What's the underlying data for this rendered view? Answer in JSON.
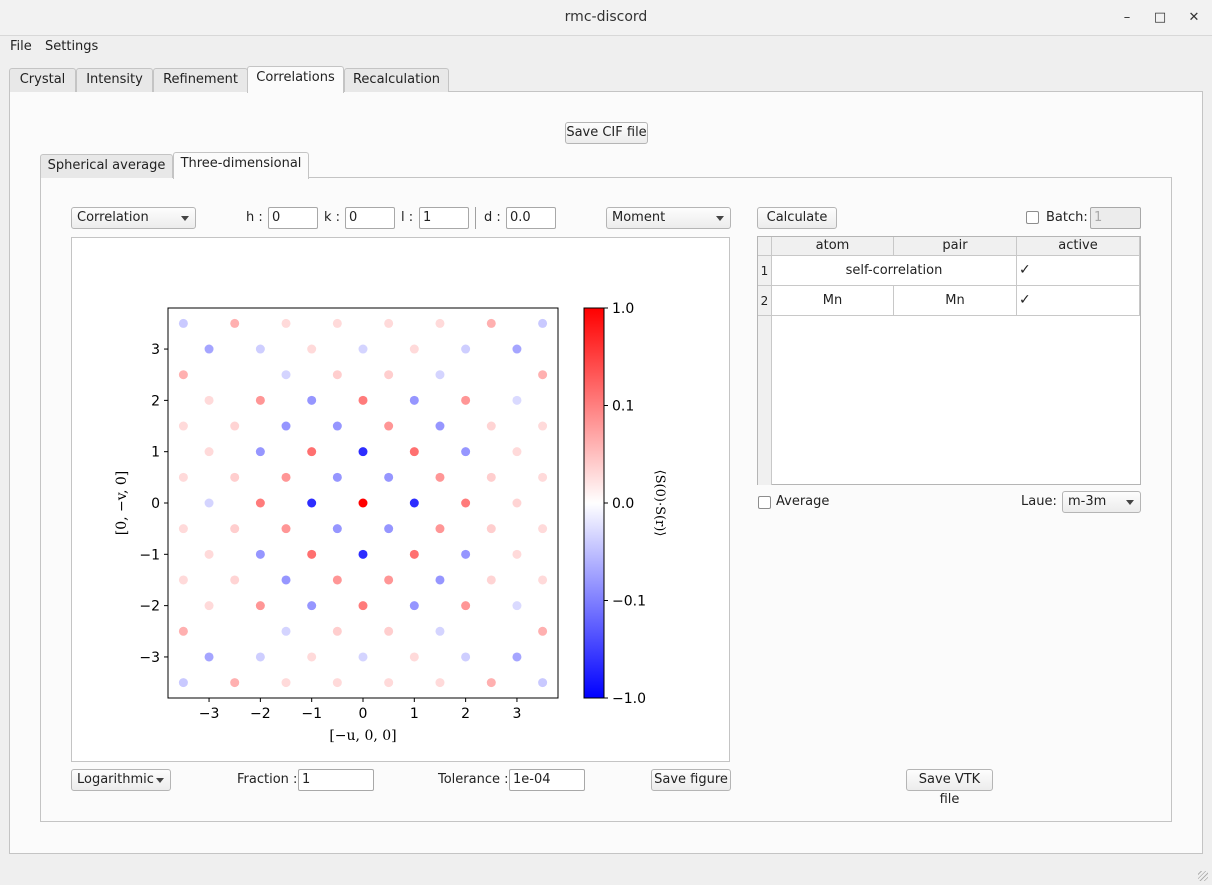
{
  "window": {
    "title": "rmc-discord",
    "minimize": "–",
    "maximize": "□",
    "close": "✕"
  },
  "menu": [
    "File",
    "Settings"
  ],
  "tabs": [
    "Crystal",
    "Intensity",
    "Refinement",
    "Correlations",
    "Recalculation"
  ],
  "save_cif": "Save CIF file",
  "subtabs": [
    "Spherical average",
    "Three-dimensional"
  ],
  "controls": {
    "correlation_combo": "Correlation",
    "h_label": "h :",
    "h_value": "0",
    "k_label": "k :",
    "k_value": "0",
    "l_label": "l :",
    "l_value": "1",
    "d_label": "d :",
    "d_value": "0.0",
    "moment_combo": "Moment",
    "calculate": "Calculate",
    "batch_label": "Batch:",
    "batch_value": "1",
    "scale_combo": "Logarithmic",
    "fraction_label": "Fraction :",
    "fraction_value": "1",
    "tolerance_label": "Tolerance :",
    "tolerance_value": "1e-04",
    "save_figure": "Save figure",
    "average_label": "Average",
    "laue_label": "Laue:",
    "laue_value": "m-3m",
    "save_vtk": "Save VTK file"
  },
  "table": {
    "headers": [
      "atom",
      "pair",
      "active"
    ],
    "rows": [
      {
        "num": "1",
        "atom": "self-correlation",
        "pair": "",
        "active": "✓"
      },
      {
        "num": "2",
        "atom": "Mn",
        "pair": "Mn",
        "active": "✓"
      }
    ]
  },
  "chart_data": {
    "type": "scatter",
    "xlabel": "[−u, 0, 0]",
    "ylabel": "[0, −v, 0]",
    "xlim": [
      -3.8,
      3.8
    ],
    "ylim": [
      -3.8,
      3.8
    ],
    "xticks": [
      "−3",
      "−2",
      "−1",
      "0",
      "1",
      "2",
      "3"
    ],
    "yticks": [
      "3",
      "2",
      "1",
      "0",
      "−1",
      "−2",
      "−3"
    ],
    "colorbar_label": "⟨S(0)·S(r)⟩",
    "colorbar_ticks": [
      "1.0",
      "0.1",
      "0.0",
      "−0.1",
      "−1.0"
    ],
    "colorbar_range": [
      -1.0,
      1.0
    ],
    "colormap": [
      "#0000ff",
      "#ffffff",
      "#ff0000"
    ],
    "points": [
      {
        "x": 0,
        "y": 0,
        "v": 1.0
      },
      {
        "x": 1,
        "y": 0,
        "v": -0.7
      },
      {
        "x": -1,
        "y": 0,
        "v": -0.7
      },
      {
        "x": 0,
        "y": 1,
        "v": -0.7
      },
      {
        "x": 0,
        "y": -1,
        "v": -0.7
      },
      {
        "x": 1,
        "y": 1,
        "v": 0.35
      },
      {
        "x": -1,
        "y": 1,
        "v": 0.35
      },
      {
        "x": 1,
        "y": -1,
        "v": 0.35
      },
      {
        "x": -1,
        "y": -1,
        "v": 0.35
      },
      {
        "x": 2,
        "y": 0,
        "v": 0.3
      },
      {
        "x": -2,
        "y": 0,
        "v": 0.3
      },
      {
        "x": 0,
        "y": 2,
        "v": 0.3
      },
      {
        "x": 0,
        "y": -2,
        "v": 0.3
      },
      {
        "x": 0.5,
        "y": 0.5,
        "v": -0.2
      },
      {
        "x": -0.5,
        "y": 0.5,
        "v": -0.2
      },
      {
        "x": 0.5,
        "y": -0.5,
        "v": -0.2
      },
      {
        "x": -0.5,
        "y": -0.5,
        "v": -0.2
      },
      {
        "x": 1.5,
        "y": 0.5,
        "v": 0.2
      },
      {
        "x": -1.5,
        "y": 0.5,
        "v": 0.2
      },
      {
        "x": 1.5,
        "y": -0.5,
        "v": 0.2
      },
      {
        "x": -1.5,
        "y": -0.5,
        "v": 0.2
      },
      {
        "x": 0.5,
        "y": 1.5,
        "v": 0.2
      },
      {
        "x": -0.5,
        "y": 1.5,
        "v": -0.2
      },
      {
        "x": 0.5,
        "y": -1.5,
        "v": 0.2
      },
      {
        "x": -0.5,
        "y": -1.5,
        "v": 0.2
      },
      {
        "x": 1.5,
        "y": 1.5,
        "v": -0.2
      },
      {
        "x": -1.5,
        "y": 1.5,
        "v": -0.2
      },
      {
        "x": 1.5,
        "y": -1.5,
        "v": -0.2
      },
      {
        "x": -1.5,
        "y": -1.5,
        "v": -0.2
      },
      {
        "x": 2,
        "y": 1,
        "v": -0.2
      },
      {
        "x": -2,
        "y": 1,
        "v": -0.2
      },
      {
        "x": 2,
        "y": -1,
        "v": -0.2
      },
      {
        "x": -2,
        "y": -1,
        "v": -0.2
      },
      {
        "x": 1,
        "y": 2,
        "v": -0.2
      },
      {
        "x": -1,
        "y": 2,
        "v": -0.2
      },
      {
        "x": 1,
        "y": -2,
        "v": -0.2
      },
      {
        "x": -1,
        "y": -2,
        "v": -0.2
      },
      {
        "x": 2,
        "y": 2,
        "v": 0.2
      },
      {
        "x": -2,
        "y": 2,
        "v": 0.2
      },
      {
        "x": 2,
        "y": -2,
        "v": 0.2
      },
      {
        "x": -2,
        "y": -2,
        "v": 0.2
      },
      {
        "x": 3,
        "y": 3,
        "v": -0.15
      },
      {
        "x": -3,
        "y": 3,
        "v": -0.15
      },
      {
        "x": 3,
        "y": -3,
        "v": -0.15
      },
      {
        "x": -3,
        "y": -3,
        "v": -0.15
      },
      {
        "x": 2.5,
        "y": 3.5,
        "v": 0.12
      },
      {
        "x": -2.5,
        "y": 3.5,
        "v": 0.12
      },
      {
        "x": 2.5,
        "y": -3.5,
        "v": 0.12
      },
      {
        "x": -2.5,
        "y": -3.5,
        "v": 0.12
      },
      {
        "x": 3.5,
        "y": 2.5,
        "v": 0.12
      },
      {
        "x": -3.5,
        "y": 2.5,
        "v": 0.12
      },
      {
        "x": 3.5,
        "y": -2.5,
        "v": 0.12
      },
      {
        "x": -3.5,
        "y": -2.5,
        "v": 0.12
      },
      {
        "x": 3,
        "y": 0,
        "v": 0.04
      },
      {
        "x": -3,
        "y": 0,
        "v": -0.04
      },
      {
        "x": 0,
        "y": 3,
        "v": -0.04
      },
      {
        "x": 0,
        "y": -3,
        "v": -0.04
      },
      {
        "x": 2.5,
        "y": 0.5,
        "v": 0.05
      },
      {
        "x": -2.5,
        "y": 0.5,
        "v": 0.05
      },
      {
        "x": 2.5,
        "y": -0.5,
        "v": 0.05
      },
      {
        "x": -2.5,
        "y": -0.5,
        "v": 0.05
      },
      {
        "x": 0.5,
        "y": 2.5,
        "v": 0.05
      },
      {
        "x": -0.5,
        "y": 2.5,
        "v": 0.05
      },
      {
        "x": 0.5,
        "y": -2.5,
        "v": 0.05
      },
      {
        "x": -0.5,
        "y": -2.5,
        "v": 0.05
      },
      {
        "x": 1.5,
        "y": 2.5,
        "v": -0.04
      },
      {
        "x": -1.5,
        "y": 2.5,
        "v": -0.04
      },
      {
        "x": 1.5,
        "y": -2.5,
        "v": -0.04
      },
      {
        "x": -1.5,
        "y": -2.5,
        "v": -0.04
      },
      {
        "x": 2.5,
        "y": 1.5,
        "v": 0.04
      },
      {
        "x": -2.5,
        "y": 1.5,
        "v": 0.04
      },
      {
        "x": 2.5,
        "y": -1.5,
        "v": 0.04
      },
      {
        "x": -2.5,
        "y": -1.5,
        "v": 0.04
      },
      {
        "x": 3,
        "y": 1,
        "v": 0.03
      },
      {
        "x": -3,
        "y": 1,
        "v": 0.03
      },
      {
        "x": 3,
        "y": -1,
        "v": 0.03
      },
      {
        "x": -3,
        "y": -1,
        "v": 0.03
      },
      {
        "x": 1,
        "y": 3,
        "v": 0.03
      },
      {
        "x": -1,
        "y": 3,
        "v": 0.03
      },
      {
        "x": 1,
        "y": -3,
        "v": 0.03
      },
      {
        "x": -1,
        "y": -3,
        "v": 0.03
      },
      {
        "x": 3,
        "y": 2,
        "v": -0.03
      },
      {
        "x": -3,
        "y": 2,
        "v": 0.03
      },
      {
        "x": 3,
        "y": -2,
        "v": -0.03
      },
      {
        "x": -3,
        "y": -2,
        "v": 0.03
      },
      {
        "x": 2,
        "y": 3,
        "v": -0.05
      },
      {
        "x": -2,
        "y": 3,
        "v": -0.05
      },
      {
        "x": 2,
        "y": -3,
        "v": -0.05
      },
      {
        "x": -2,
        "y": -3,
        "v": -0.05
      },
      {
        "x": 3.5,
        "y": 0.5,
        "v": 0.03
      },
      {
        "x": -3.5,
        "y": 0.5,
        "v": 0.03
      },
      {
        "x": 3.5,
        "y": -0.5,
        "v": 0.03
      },
      {
        "x": -3.5,
        "y": -0.5,
        "v": 0.03
      },
      {
        "x": 3.5,
        "y": 1.5,
        "v": 0.03
      },
      {
        "x": -3.5,
        "y": 1.5,
        "v": 0.03
      },
      {
        "x": 3.5,
        "y": -1.5,
        "v": 0.03
      },
      {
        "x": -3.5,
        "y": -1.5,
        "v": 0.03
      },
      {
        "x": 3.5,
        "y": 3.5,
        "v": -0.06
      },
      {
        "x": -3.5,
        "y": 3.5,
        "v": -0.06
      },
      {
        "x": 3.5,
        "y": -3.5,
        "v": -0.06
      },
      {
        "x": -3.5,
        "y": -3.5,
        "v": -0.06
      },
      {
        "x": 0.5,
        "y": 3.5,
        "v": 0.03
      },
      {
        "x": -0.5,
        "y": 3.5,
        "v": 0.03
      },
      {
        "x": 0.5,
        "y": -3.5,
        "v": 0.03
      },
      {
        "x": -0.5,
        "y": -3.5,
        "v": 0.03
      },
      {
        "x": 1.5,
        "y": 3.5,
        "v": 0.03
      },
      {
        "x": -1.5,
        "y": 3.5,
        "v": 0.03
      },
      {
        "x": 1.5,
        "y": -3.5,
        "v": 0.03
      },
      {
        "x": -1.5,
        "y": -3.5,
        "v": 0.03
      }
    ]
  }
}
